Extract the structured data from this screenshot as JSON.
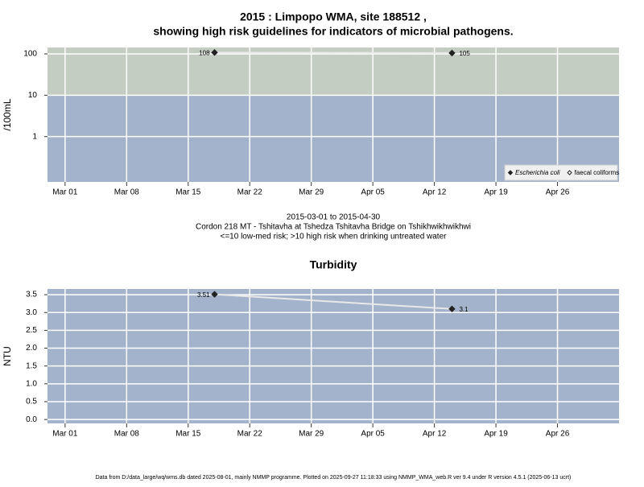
{
  "title": "2015 : Limpopo WMA, site 188512 ,",
  "subtitle": "showing high risk guidelines for indicators of microbial pathogens.",
  "caption": [
    "2015-03-01 to 2015-04-30",
    "Cordon 218 MT - Tshitavha at Tshedza Tshitavha Bridge on Tshikhwikhwikhwi",
    "<=10 low-med risk; >10 high risk when drinking untreated water"
  ],
  "footer": "Data from D:/data_large/wq/wms.db dated 2025-08-01, mainly NMMP programme. Plotted on 2025-09-27 11:18:33 using NMMP_WMA_web.R ver 9.4 under R version 4.5.1 (2025-06-13 ucrt)",
  "chart_data": [
    {
      "type": "line",
      "ylabel": "/100mL",
      "log_y": true,
      "grid": true,
      "legend": "bottom right",
      "x": [
        "2015-03-18",
        "2015-04-14"
      ],
      "xlim": [
        "2015-02-27",
        "2015-05-03"
      ],
      "xticks": [
        {
          "value": "2015-03-01",
          "label": "Mar 01"
        },
        {
          "value": "2015-03-08",
          "label": "Mar 08"
        },
        {
          "value": "2015-03-15",
          "label": "Mar 15"
        },
        {
          "value": "2015-03-22",
          "label": "Mar 22"
        },
        {
          "value": "2015-03-29",
          "label": "Mar 29"
        },
        {
          "value": "2015-04-05",
          "label": "Apr 05"
        },
        {
          "value": "2015-04-12",
          "label": "Apr 12"
        },
        {
          "value": "2015-04-19",
          "label": "Apr 19"
        },
        {
          "value": "2015-04-26",
          "label": "Apr 26"
        }
      ],
      "ylim": [
        0.08,
        143
      ],
      "yticks": [
        1,
        10,
        100
      ],
      "threshold": 10,
      "below_color": "#a3b3cc",
      "above_color": "#c4cdc2",
      "line_color": "#e8e8e8",
      "series": [
        {
          "name": "Escherichia coli",
          "color": "#222222",
          "marker": "filled",
          "values": [
            108,
            105
          ]
        },
        {
          "name": "faecal coliforms",
          "color": "#222222",
          "marker": "open",
          "values": [
            null,
            null
          ]
        }
      ]
    },
    {
      "type": "line",
      "title": "Turbidity",
      "ylabel": "NTU",
      "grid": true,
      "x": [
        "2015-03-18",
        "2015-04-14"
      ],
      "xlim": [
        "2015-02-27",
        "2015-05-03"
      ],
      "xticks": [
        {
          "value": "2015-03-01",
          "label": "Mar 01"
        },
        {
          "value": "2015-03-08",
          "label": "Mar 08"
        },
        {
          "value": "2015-03-15",
          "label": "Mar 15"
        },
        {
          "value": "2015-03-22",
          "label": "Mar 22"
        },
        {
          "value": "2015-03-29",
          "label": "Mar 29"
        },
        {
          "value": "2015-04-05",
          "label": "Apr 05"
        },
        {
          "value": "2015-04-12",
          "label": "Apr 12"
        },
        {
          "value": "2015-04-19",
          "label": "Apr 19"
        },
        {
          "value": "2015-04-26",
          "label": "Apr 26"
        }
      ],
      "ylim": [
        -0.11,
        3.66
      ],
      "yticks": [
        {
          "value": 0,
          "label": "0.0"
        },
        {
          "value": 0.5,
          "label": "0.5"
        },
        {
          "value": 1,
          "label": "1.0"
        },
        {
          "value": 1.5,
          "label": "1.5"
        },
        {
          "value": 2,
          "label": "2.0"
        },
        {
          "value": 2.5,
          "label": "2.5"
        },
        {
          "value": 3,
          "label": "3.0"
        },
        {
          "value": 3.5,
          "label": "3.5"
        }
      ],
      "below_color": "#a3b3cc",
      "line_color": "#e8e8e8",
      "color": "#222222",
      "values": [
        3.51,
        3.1
      ]
    }
  ]
}
